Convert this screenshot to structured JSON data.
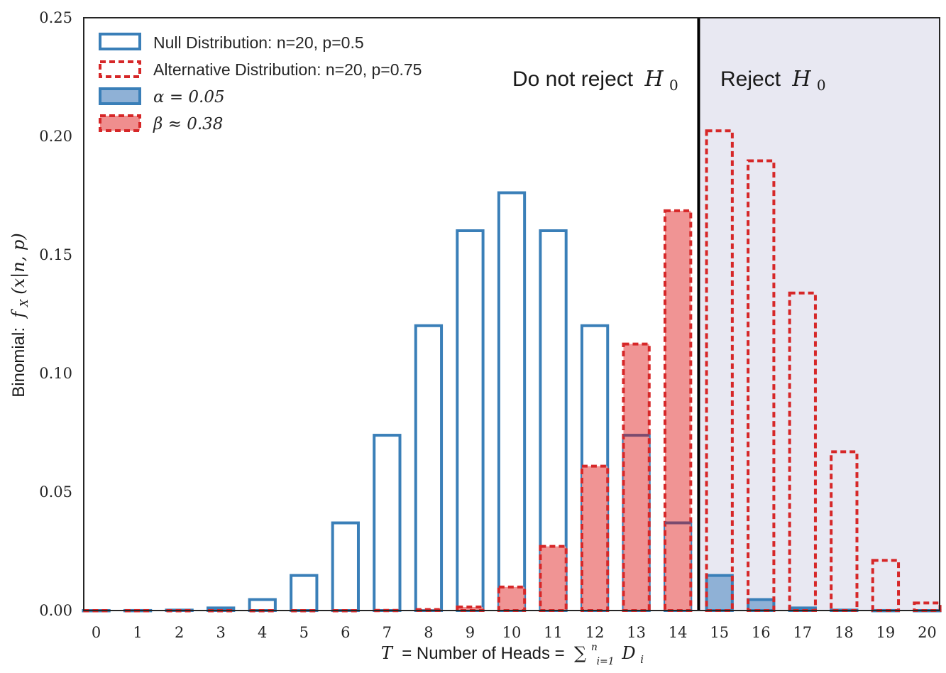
{
  "chart_data": {
    "type": "bar",
    "x": [
      0,
      1,
      2,
      3,
      4,
      5,
      6,
      7,
      8,
      9,
      10,
      11,
      12,
      13,
      14,
      15,
      16,
      17,
      18,
      19,
      20
    ],
    "series": [
      {
        "name": "Null Distribution: n=20, p=0.5",
        "values": [
          1e-06,
          1.9e-05,
          0.000181,
          0.001087,
          0.004621,
          0.014786,
          0.036964,
          0.073929,
          0.120134,
          0.160179,
          0.176197,
          0.160179,
          0.120134,
          0.073929,
          0.036964,
          0.014786,
          0.004621,
          0.001087,
          0.000181,
          1.9e-05,
          1e-06
        ],
        "color": "#3a7fb8"
      },
      {
        "name": "Alternative Distribution: n=20, p=0.75",
        "values": [
          0,
          0,
          0,
          0,
          0,
          3e-06,
          1.6e-05,
          9.1e-05,
          0.000409,
          0.001498,
          0.009922,
          0.027061,
          0.060887,
          0.112406,
          0.168609,
          0.202331,
          0.189685,
          0.133896,
          0.066948,
          0.021141,
          0.003171
        ],
        "color": "#d62728"
      }
    ],
    "legend": {
      "null_label": "Null Distribution: n=20, p=0.5",
      "alt_label": "Alternative Distribution: n=20, p=0.75",
      "alpha_label": "α = 0.05",
      "beta_label": "β ≈ 0.38",
      "placement": "top-left"
    },
    "regions": {
      "accept_label": "Do not reject",
      "reject_label": "Reject",
      "h_symbol": "H",
      "h_subscript": "0",
      "critical_value": 14.5,
      "reject_shade": "#e8e8f2"
    },
    "xlabel": {
      "t_symbol": "T",
      "text": " = Number of Heads = ",
      "sum_symbol": "∑",
      "sum_sub": "i=1",
      "sum_sup": "n",
      "d_symbol": "D",
      "d_sub": "i"
    },
    "ylabel": {
      "text": "Binomial: ",
      "math": "f",
      "math_sub": "X",
      "math_rest": "(x|n, p)"
    },
    "xlim": [
      -0.3,
      20.3
    ],
    "ylim": [
      0,
      0.25
    ],
    "yticks": [
      "0.00",
      "0.05",
      "0.10",
      "0.15",
      "0.20",
      "0.25"
    ],
    "grid": false,
    "colors": {
      "null_edge": "#3a7fb8",
      "null_fill": "#8fb1d6",
      "alt_edge": "#d62728",
      "alt_fill": "#ef8e8e"
    }
  }
}
